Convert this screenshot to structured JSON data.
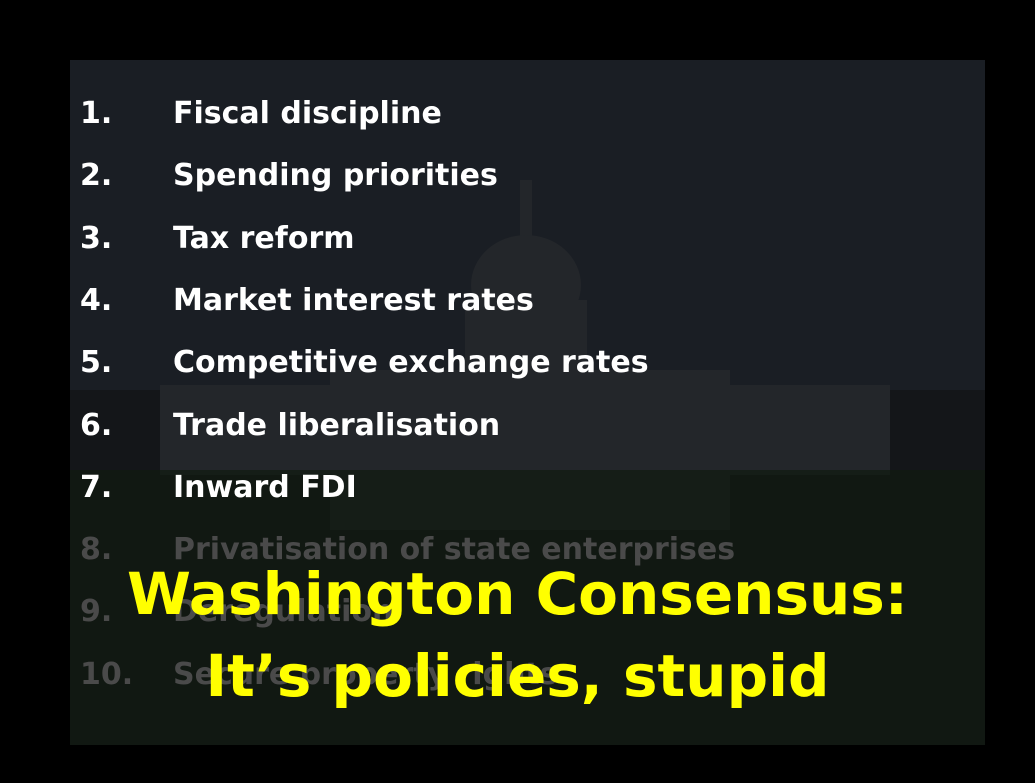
{
  "items": [
    {
      "number": "1.",
      "text": "Fiscal discipline"
    },
    {
      "number": "2.",
      "text": "Spending priorities"
    },
    {
      "number": "3.",
      "text": "Tax reform"
    },
    {
      "number": "4.",
      "text": "Market interest rates"
    },
    {
      "number": "5.",
      "text": "Competitive exchange rates"
    },
    {
      "number": "6.",
      "text": "Trade liberalisation"
    },
    {
      "number": "7.",
      "text": "Inward FDI"
    },
    {
      "number": "8.",
      "text": "Privatisation of state enterprises"
    },
    {
      "number": "9.",
      "text": "Deregulation"
    },
    {
      "number": "10.",
      "text": "Secure property rights"
    }
  ],
  "title": {
    "line1": "Washington Consensus:",
    "line2": "It’s policies, stupid"
  }
}
